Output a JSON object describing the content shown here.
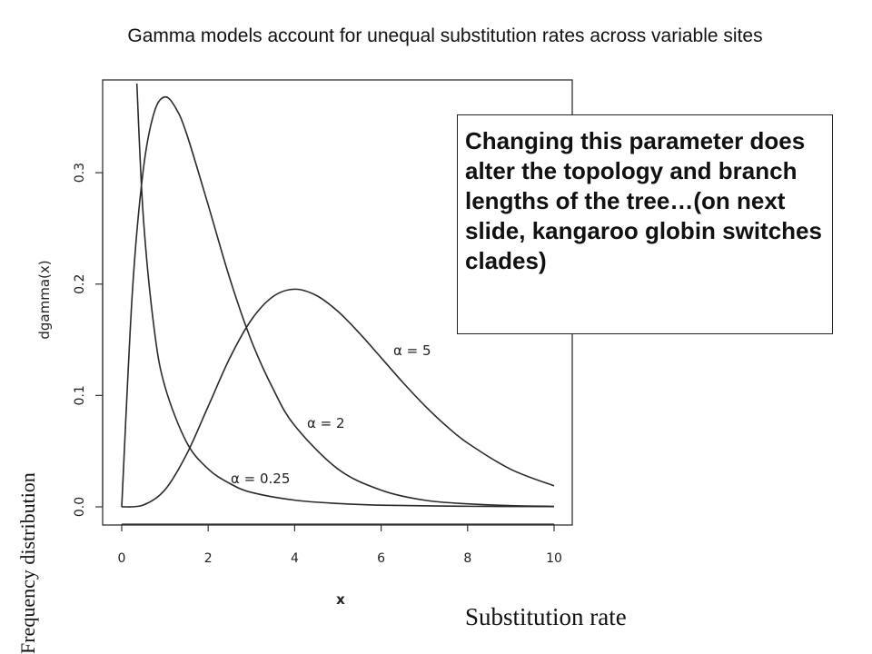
{
  "slide": {
    "title": "Gamma models account for unequal substitution rates across variable sites",
    "callout": "Changing this parameter does alter the topology and branch lengths of the tree…(on next slide, kangaroo globin switches clades)",
    "y_annotation": "Frequency distribution",
    "x_annotation": "Substitution rate"
  },
  "chart_data": {
    "type": "line",
    "title": "",
    "xlabel": "x",
    "ylabel": "dgamma(x)",
    "xlim": [
      0,
      10
    ],
    "ylim": [
      0,
      0.38
    ],
    "xticks": [
      "0",
      "2",
      "4",
      "6",
      "8",
      "10"
    ],
    "yticks": [
      "0.0",
      "0.1",
      "0.2",
      "0.3"
    ],
    "grid": false,
    "series": [
      {
        "name": "α = 0.25",
        "x": [
          0.35,
          0.5,
          0.75,
          1,
          1.5,
          2,
          2.5,
          3,
          4,
          5,
          6,
          8,
          10
        ],
        "values": [
          0.38,
          0.26,
          0.16,
          0.108,
          0.058,
          0.034,
          0.021,
          0.013,
          0.006,
          0.003,
          0.0015,
          0.0005,
          0.0002
        ]
      },
      {
        "name": "α = 2",
        "x": [
          0,
          0.25,
          0.5,
          0.75,
          1,
          1.25,
          1.5,
          2,
          2.5,
          3,
          3.5,
          4,
          5,
          6,
          7,
          8,
          9,
          10
        ],
        "values": [
          0,
          0.195,
          0.303,
          0.354,
          0.368,
          0.358,
          0.335,
          0.271,
          0.205,
          0.149,
          0.106,
          0.073,
          0.034,
          0.015,
          0.006,
          0.0027,
          0.0011,
          0.0005
        ]
      },
      {
        "name": "α = 5",
        "x": [
          0,
          0.5,
          1,
          1.5,
          2,
          2.5,
          3,
          3.5,
          4,
          4.5,
          5,
          5.5,
          6,
          6.5,
          7,
          7.5,
          8,
          9,
          10
        ],
        "values": [
          0,
          0.0016,
          0.0153,
          0.0471,
          0.0902,
          0.1336,
          0.168,
          0.1888,
          0.1954,
          0.1898,
          0.1755,
          0.1558,
          0.1339,
          0.1118,
          0.0912,
          0.0729,
          0.0573,
          0.0337,
          0.0189
        ]
      }
    ],
    "annotations": [
      "α = 5",
      "α = 2",
      "α = 0.25"
    ]
  }
}
